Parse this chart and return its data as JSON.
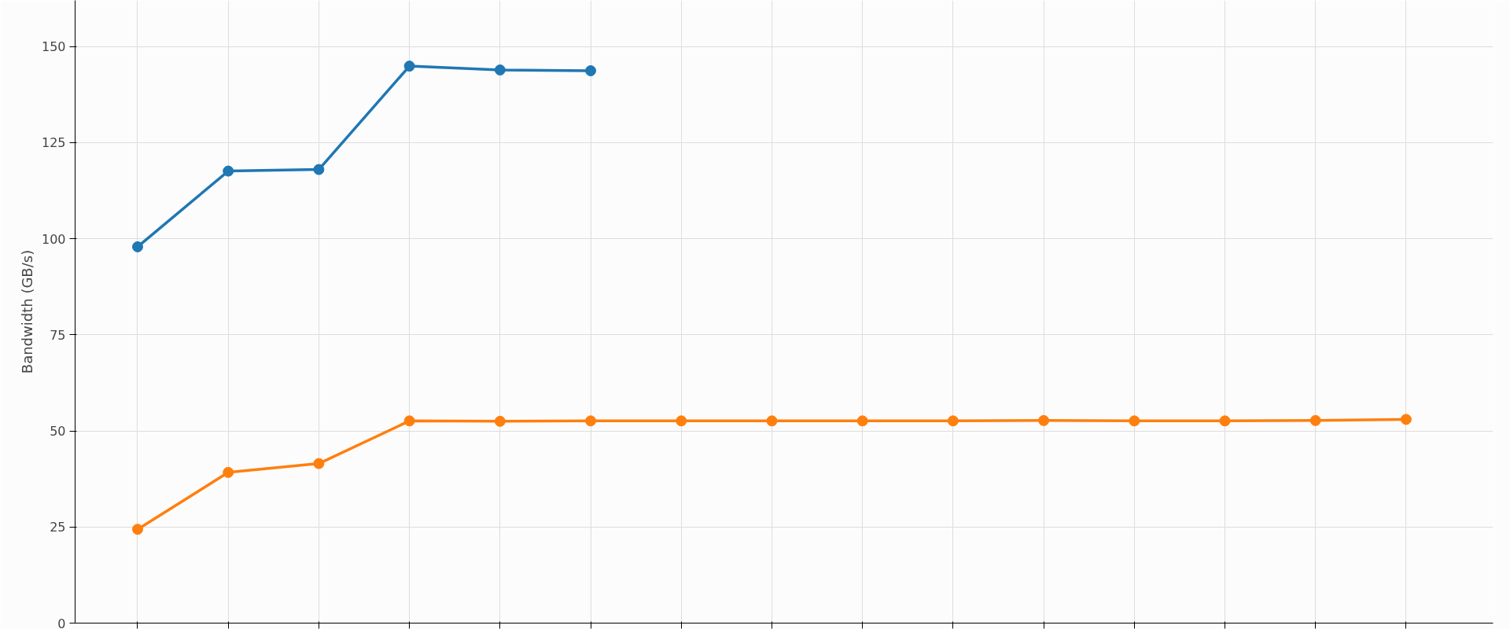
{
  "chart_data": {
    "type": "line",
    "ylabel": "Bandwidth (GB/s)",
    "categories": [
      null,
      null,
      null,
      null,
      null,
      null,
      null,
      null,
      null,
      null,
      null,
      null,
      null,
      null,
      null
    ],
    "series": [
      {
        "color": "#1f77b4",
        "values": [
          97.9,
          117.6,
          118.0,
          144.9,
          143.9,
          143.7,
          null,
          null,
          null,
          null,
          null,
          null,
          null,
          null,
          null
        ]
      },
      {
        "color": "#ff7f0e",
        "values": [
          24.4,
          39.2,
          41.5,
          52.6,
          52.5,
          52.6,
          52.6,
          52.6,
          52.6,
          52.6,
          52.7,
          52.6,
          52.6,
          52.7,
          53.0
        ]
      }
    ],
    "ylim": [
      0,
      162
    ],
    "yticks": [
      0,
      25,
      50,
      75,
      100,
      125,
      150
    ],
    "grid": true,
    "marker": "circle",
    "line_style": "solid",
    "tick_labels": "y"
  }
}
